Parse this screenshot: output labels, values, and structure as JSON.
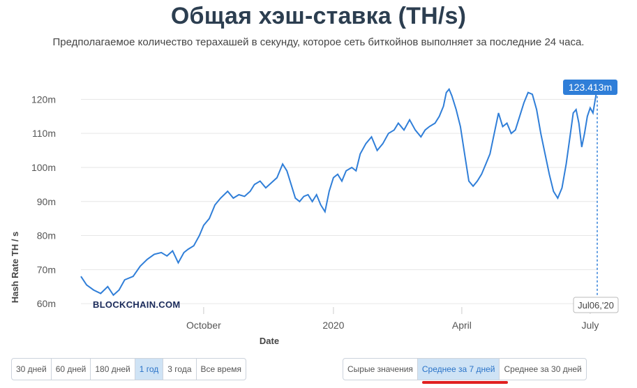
{
  "title": "Общая хэш-ставка (TH/s)",
  "subtitle": "Предполагаемое количество терахашей в секунду, которое сеть биткойнов выполняет за последние 24 часа.",
  "watermark": "BLOCKCHAIN.COM",
  "range_buttons": [
    {
      "label": "30 дней",
      "active": false
    },
    {
      "label": "60 дней",
      "active": false
    },
    {
      "label": "180 дней",
      "active": false
    },
    {
      "label": "1 год",
      "active": true
    },
    {
      "label": "3 года",
      "active": false
    },
    {
      "label": "Все время",
      "active": false
    }
  ],
  "mode_buttons": [
    {
      "label": "Сырые значения",
      "active": false
    },
    {
      "label": "Среднее за 7 дней",
      "active": true
    },
    {
      "label": "Среднее за 30 дней",
      "active": false
    }
  ],
  "colors": {
    "line": "#2f7ed8",
    "tooltip_bg": "#2f7ed8",
    "highlight": "#e02020"
  },
  "chart_data": {
    "type": "line",
    "title": "Общая хэш-ставка (TH/s)",
    "xlabel": "Date",
    "ylabel": "Hash Rate TH / s",
    "x_range": [
      "2019-07-06",
      "2020-07-06"
    ],
    "ylim": [
      59,
      125
    ],
    "y_ticks": [
      60,
      70,
      80,
      90,
      100,
      110,
      120
    ],
    "y_tick_labels": [
      "60m",
      "70m",
      "80m",
      "90m",
      "100m",
      "110m",
      "120m"
    ],
    "x_ticks": [
      {
        "label": "October",
        "date": "2019-10-01"
      },
      {
        "label": "2020",
        "date": "2020-01-01"
      },
      {
        "label": "April",
        "date": "2020-04-01"
      },
      {
        "label": "July",
        "date": "2020-07-01"
      }
    ],
    "grid": true,
    "tooltip": {
      "value_label": "123.413m",
      "date_label": "Jul06,'20"
    },
    "series": [
      {
        "name": "",
        "points": [
          [
            "2019-07-06",
            68
          ],
          [
            "2019-07-10",
            65.5
          ],
          [
            "2019-07-15",
            64
          ],
          [
            "2019-07-20",
            63
          ],
          [
            "2019-07-25",
            65
          ],
          [
            "2019-07-29",
            62.5
          ],
          [
            "2019-08-02",
            64
          ],
          [
            "2019-08-06",
            67
          ],
          [
            "2019-08-12",
            68
          ],
          [
            "2019-08-17",
            71
          ],
          [
            "2019-08-22",
            73
          ],
          [
            "2019-08-27",
            74.5
          ],
          [
            "2019-09-01",
            75
          ],
          [
            "2019-09-05",
            74
          ],
          [
            "2019-09-09",
            75.5
          ],
          [
            "2019-09-13",
            72
          ],
          [
            "2019-09-17",
            75
          ],
          [
            "2019-09-20",
            76
          ],
          [
            "2019-09-24",
            77
          ],
          [
            "2019-09-28",
            80
          ],
          [
            "2019-10-01",
            83
          ],
          [
            "2019-10-05",
            85
          ],
          [
            "2019-10-09",
            89
          ],
          [
            "2019-10-13",
            91
          ],
          [
            "2019-10-18",
            93
          ],
          [
            "2019-10-22",
            91
          ],
          [
            "2019-10-26",
            92
          ],
          [
            "2019-10-30",
            91.5
          ],
          [
            "2019-11-03",
            93
          ],
          [
            "2019-11-06",
            95
          ],
          [
            "2019-11-10",
            96
          ],
          [
            "2019-11-14",
            94
          ],
          [
            "2019-11-18",
            95.5
          ],
          [
            "2019-11-22",
            97
          ],
          [
            "2019-11-26",
            101
          ],
          [
            "2019-11-29",
            99
          ],
          [
            "2019-12-02",
            95
          ],
          [
            "2019-12-05",
            91
          ],
          [
            "2019-12-08",
            90
          ],
          [
            "2019-12-11",
            91.5
          ],
          [
            "2019-12-14",
            92
          ],
          [
            "2019-12-17",
            90
          ],
          [
            "2019-12-20",
            92
          ],
          [
            "2019-12-23",
            89
          ],
          [
            "2019-12-26",
            87
          ],
          [
            "2019-12-29",
            93
          ],
          [
            "2020-01-01",
            97
          ],
          [
            "2020-01-04",
            98
          ],
          [
            "2020-01-07",
            96
          ],
          [
            "2020-01-10",
            99
          ],
          [
            "2020-01-14",
            100
          ],
          [
            "2020-01-17",
            99
          ],
          [
            "2020-01-20",
            104
          ],
          [
            "2020-01-24",
            107
          ],
          [
            "2020-01-28",
            109
          ],
          [
            "2020-02-01",
            105
          ],
          [
            "2020-02-05",
            107
          ],
          [
            "2020-02-09",
            110
          ],
          [
            "2020-02-13",
            111
          ],
          [
            "2020-02-16",
            113
          ],
          [
            "2020-02-20",
            111
          ],
          [
            "2020-02-24",
            114
          ],
          [
            "2020-02-28",
            111
          ],
          [
            "2020-03-03",
            109
          ],
          [
            "2020-03-06",
            111
          ],
          [
            "2020-03-09",
            112
          ],
          [
            "2020-03-13",
            113
          ],
          [
            "2020-03-16",
            115
          ],
          [
            "2020-03-19",
            118
          ],
          [
            "2020-03-21",
            122
          ],
          [
            "2020-03-23",
            123
          ],
          [
            "2020-03-25",
            121
          ],
          [
            "2020-03-28",
            117
          ],
          [
            "2020-03-31",
            112
          ],
          [
            "2020-04-03",
            104
          ],
          [
            "2020-04-06",
            96
          ],
          [
            "2020-04-09",
            94.5
          ],
          [
            "2020-04-12",
            96
          ],
          [
            "2020-04-15",
            98
          ],
          [
            "2020-04-18",
            101
          ],
          [
            "2020-04-21",
            104
          ],
          [
            "2020-04-24",
            110
          ],
          [
            "2020-04-27",
            116
          ],
          [
            "2020-04-30",
            112
          ],
          [
            "2020-05-03",
            113
          ],
          [
            "2020-05-06",
            110
          ],
          [
            "2020-05-09",
            111
          ],
          [
            "2020-05-12",
            115
          ],
          [
            "2020-05-15",
            119
          ],
          [
            "2020-05-18",
            122
          ],
          [
            "2020-05-21",
            121.5
          ],
          [
            "2020-05-24",
            117
          ],
          [
            "2020-05-27",
            110
          ],
          [
            "2020-05-30",
            104
          ],
          [
            "2020-06-02",
            98
          ],
          [
            "2020-06-05",
            93
          ],
          [
            "2020-06-08",
            91
          ],
          [
            "2020-06-11",
            94
          ],
          [
            "2020-06-14",
            101
          ],
          [
            "2020-06-17",
            110
          ],
          [
            "2020-06-19",
            116
          ],
          [
            "2020-06-21",
            117
          ],
          [
            "2020-06-23",
            113
          ],
          [
            "2020-06-25",
            106
          ],
          [
            "2020-06-27",
            110
          ],
          [
            "2020-06-29",
            115
          ],
          [
            "2020-07-01",
            117.5
          ],
          [
            "2020-07-03",
            116
          ],
          [
            "2020-07-05",
            121
          ],
          [
            "2020-07-06",
            123.413
          ]
        ]
      }
    ]
  }
}
